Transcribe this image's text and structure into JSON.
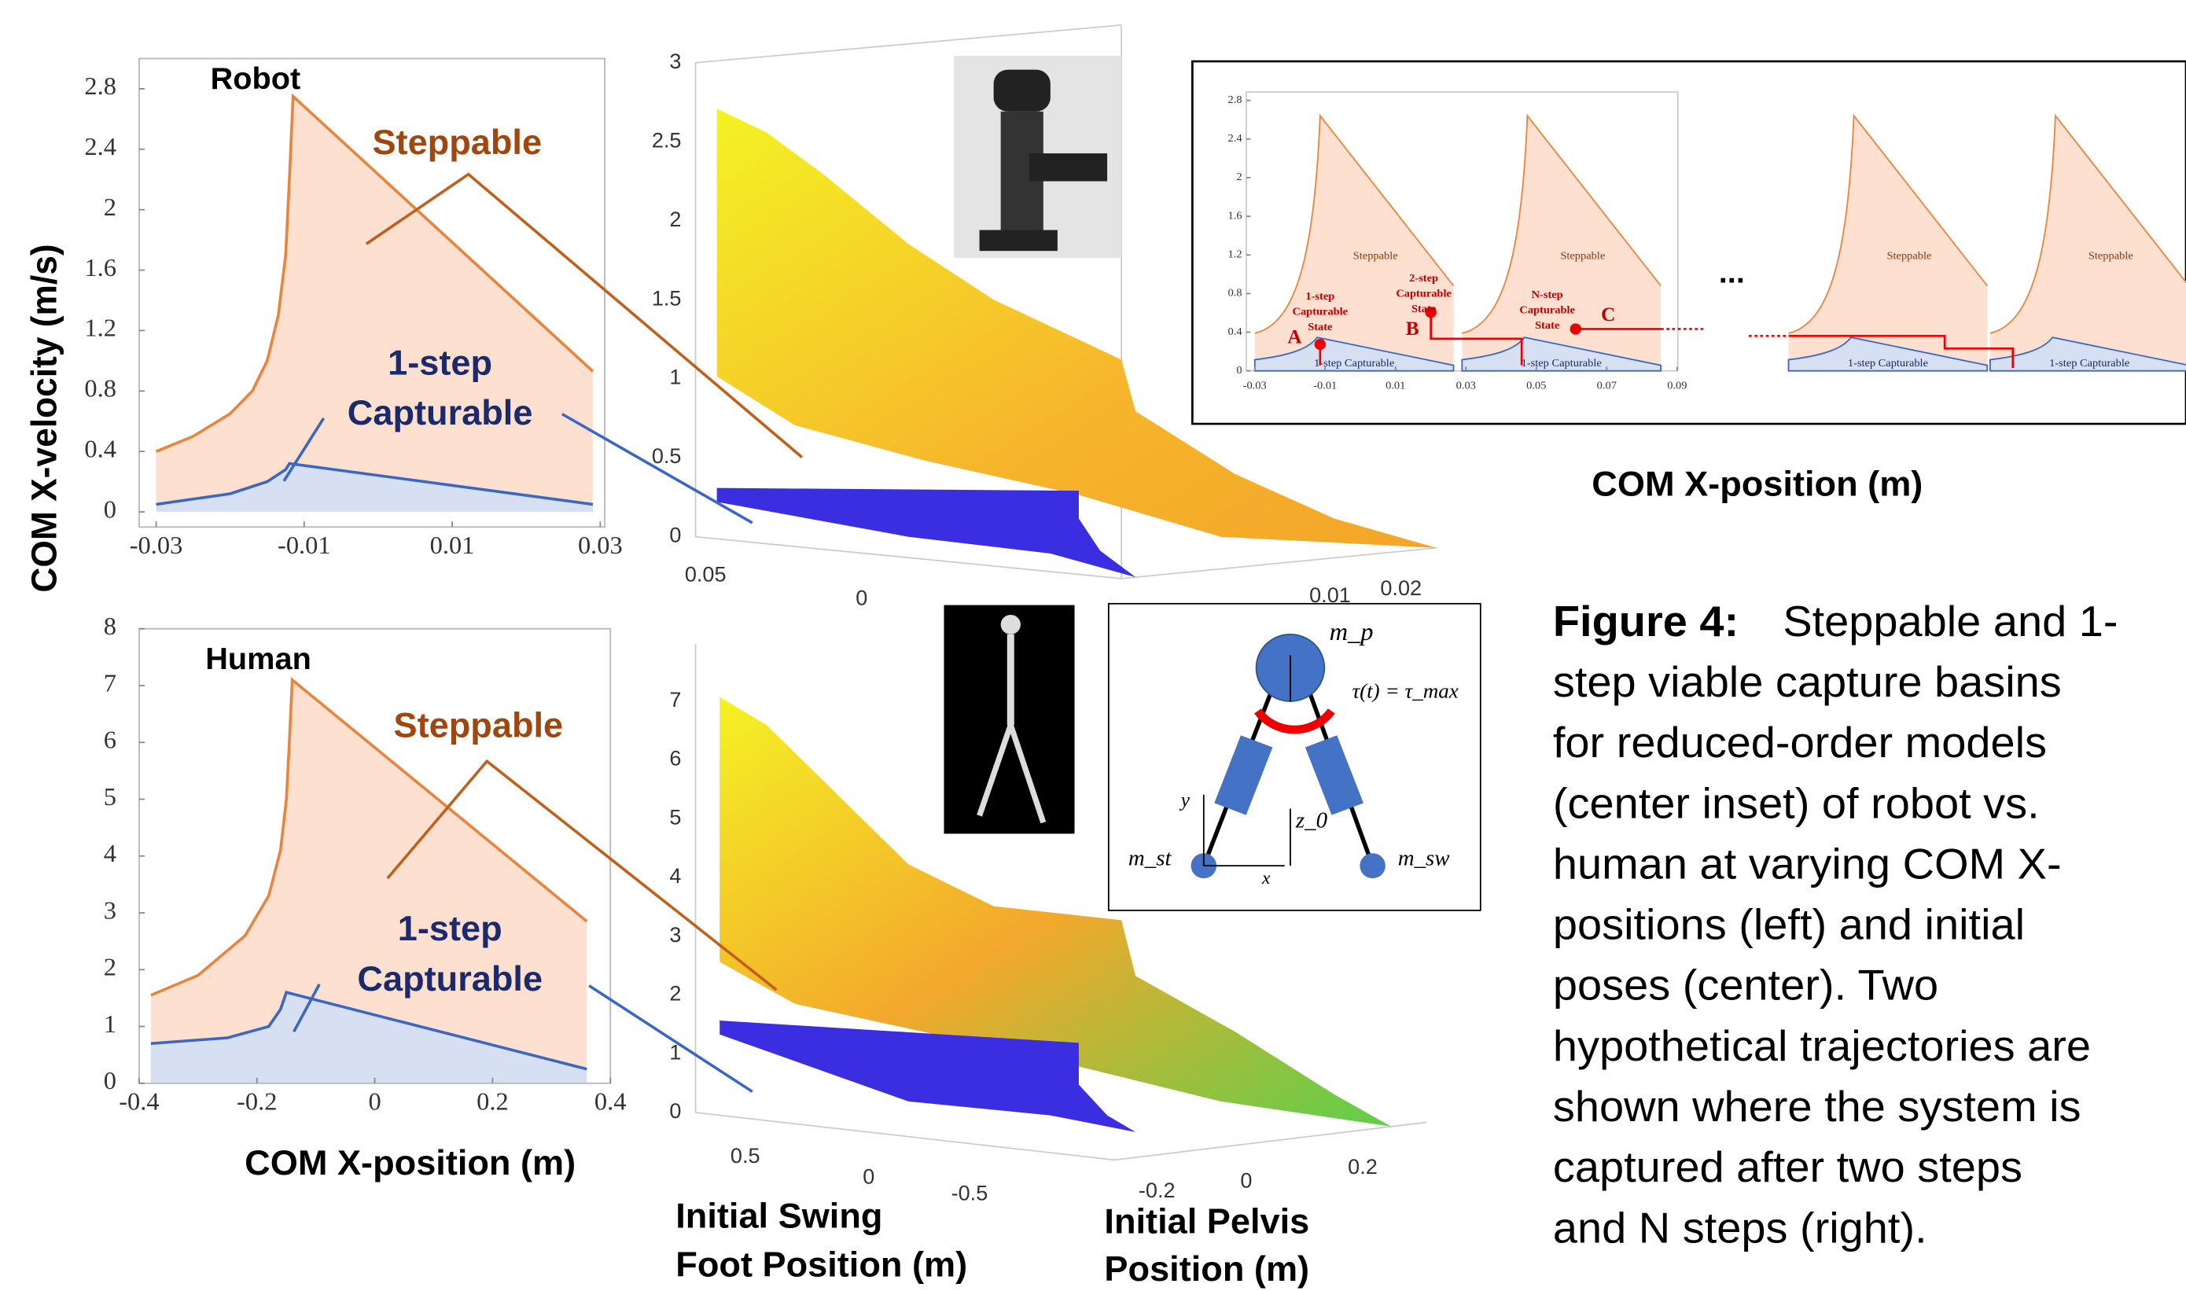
{
  "chart_data": [
    {
      "type": "area",
      "ylabel": "COM X-velocity (m/s)",
      "xlim": [
        -0.0323,
        0.0306
      ],
      "ylim": [
        -0.1,
        3.0
      ],
      "xticks": [
        -0.03,
        -0.01,
        0.01,
        0.03
      ],
      "yticks": [
        0,
        0.4,
        0.8,
        1.2,
        1.6,
        2,
        2.4,
        2.8
      ],
      "series": [
        {
          "color": "#e8843c",
          "fill": "#fde0cf",
          "x": [
            -0.03,
            -0.025,
            -0.02,
            -0.017,
            -0.015,
            -0.0135,
            -0.0125,
            -0.012,
            -0.0115,
            0.029
          ],
          "values": [
            0.4,
            0.5,
            0.65,
            0.8,
            1.0,
            1.3,
            1.7,
            2.2,
            2.75,
            0.93
          ]
        },
        {
          "color": "#3a66c4",
          "fill": "#d6e0f2",
          "x": [
            -0.03,
            -0.02,
            -0.015,
            -0.0125,
            -0.012,
            0.029
          ],
          "values": [
            0.05,
            0.12,
            0.2,
            0.28,
            0.32,
            0.05
          ]
        }
      ],
      "annotations": [
        "Robot",
        "Steppable",
        "1-step",
        "Capturable"
      ]
    },
    {
      "type": "area",
      "xlabel": "COM X-position (m)",
      "xlim": [
        -0.4,
        0.4
      ],
      "ylim": [
        0,
        8
      ],
      "xticks": [
        -0.4,
        -0.2,
        0,
        0.2,
        0.4
      ],
      "yticks": [
        0,
        1,
        2,
        3,
        4,
        5,
        6,
        7,
        8
      ],
      "series": [
        {
          "color": "#e8843c",
          "fill": "#fde0cf",
          "x": [
            -0.38,
            -0.3,
            -0.22,
            -0.18,
            -0.16,
            -0.15,
            -0.145,
            -0.14,
            0.36
          ],
          "values": [
            1.55,
            1.9,
            2.6,
            3.3,
            4.1,
            5.0,
            6.0,
            7.1,
            2.85
          ]
        },
        {
          "color": "#3a66c4",
          "fill": "#d6e0f2",
          "x": [
            -0.38,
            -0.25,
            -0.18,
            -0.16,
            -0.15,
            0.36
          ],
          "values": [
            0.7,
            0.8,
            1.0,
            1.3,
            1.6,
            0.25
          ]
        }
      ],
      "annotations": [
        "Human",
        "Steppable",
        "1-step",
        "Capturable"
      ]
    },
    {
      "type": "schematic",
      "xlabel": "COM X-position (m)",
      "xlim": [
        -0.0324,
        0.0902
      ],
      "ylim": [
        0,
        2.8
      ],
      "xticks": [
        -0.03,
        -0.01,
        0.01,
        0.03,
        0.05,
        0.07,
        0.09
      ],
      "yticks": [
        0,
        0.4,
        0.8,
        1.2,
        1.6,
        2,
        2.4,
        2.8
      ],
      "region_labels": [
        "Steppable",
        "Steppable",
        "Steppable",
        "Steppable"
      ],
      "capture_labels": [
        "1-step Capturable",
        "1-step Capturable",
        "1-step Capturable",
        "1-step Capturable"
      ],
      "state_labels": [
        [
          "1-step",
          "Capturable",
          "State"
        ],
        [
          "2-step",
          "Capturable",
          "State"
        ],
        [
          "N-step",
          "Capturable",
          "State"
        ]
      ],
      "points": [
        "A",
        "B",
        "C"
      ],
      "ellipsis": "..."
    }
  ],
  "surface_plots": [
    {
      "zticks": [
        0,
        0.5,
        1,
        1.5,
        2,
        2.5,
        3
      ],
      "swing_ticks": [
        0.05,
        0
      ],
      "pelvis_ticks": [
        0.01,
        0.02
      ]
    },
    {
      "zticks": [
        0,
        1,
        2,
        3,
        4,
        5,
        6,
        7
      ],
      "swing_ticks": [
        0.5,
        0,
        -0.5
      ],
      "pelvis_ticks": [
        -0.2,
        0,
        0.2
      ],
      "xlabel": [
        "Initial Swing",
        "Foot Position (m)"
      ],
      "ylabel": [
        "Initial Pelvis",
        "Position (m)"
      ]
    }
  ],
  "diagram": {
    "labels": [
      "m_p",
      "τ(t) = τ_max",
      "y",
      "z_0",
      "x",
      "m_st",
      "m_sw"
    ]
  },
  "caption": {
    "label": "Figure 4:",
    "lines": [
      "Steppable and 1-",
      "step viable capture basins",
      "for reduced-order models",
      "(center inset) of robot vs.",
      "human at varying COM X-",
      "positions (left) and initial",
      "poses (center). Two",
      "hypothetical trajectories are",
      "shown where the system is",
      "captured after two steps",
      "and N steps (right)."
    ]
  }
}
